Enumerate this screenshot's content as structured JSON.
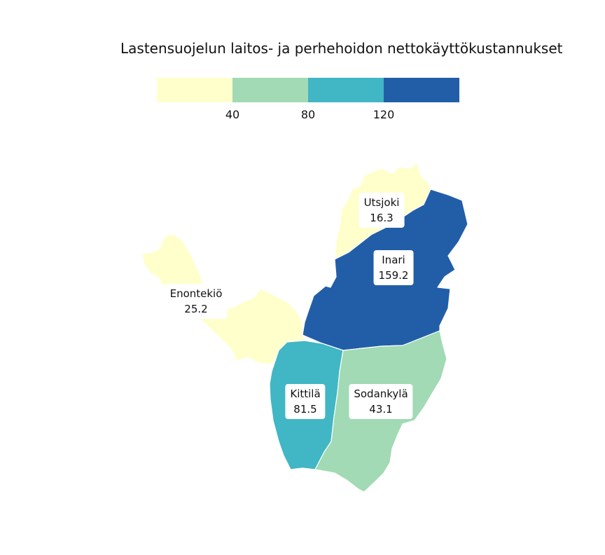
{
  "title": "Lastensuojelun laitos- ja perhehoidon nettokäyttökustannukset",
  "legend": {
    "colors": [
      "#FFFFCC",
      "#A1DAB4",
      "#41B6C4",
      "#225EA8"
    ],
    "ticks": [
      "40",
      "80",
      "120"
    ]
  },
  "regions": [
    {
      "name": "Utsjoki",
      "value": "16.3",
      "color": "#FFFFCC"
    },
    {
      "name": "Inari",
      "value": "159.2",
      "color": "#225EA8"
    },
    {
      "name": "Enontekiö",
      "value": "25.2",
      "color": "#FFFFCC"
    },
    {
      "name": "Kittilä",
      "value": "81.5",
      "color": "#41B6C4"
    },
    {
      "name": "Sodankylä",
      "value": "43.1",
      "color": "#A1DAB4"
    }
  ]
}
